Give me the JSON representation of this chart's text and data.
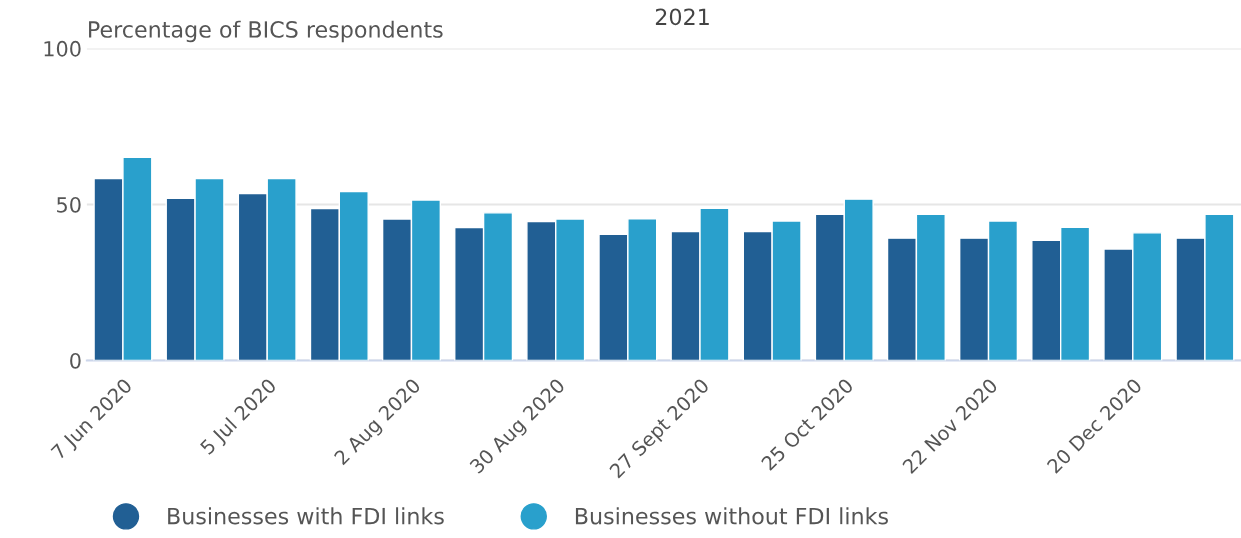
{
  "chart_data": {
    "type": "bar",
    "title": "2021",
    "ylabel": "Percentage of BICS respondents",
    "categories": [
      "7 Jun 2020",
      null,
      "5 Jul 2020",
      null,
      "2 Aug 2020",
      null,
      "30 Aug 2020",
      null,
      "27 Sept 2020",
      null,
      "25 Oct 2020",
      null,
      "22 Nov 2020",
      null,
      "20 Dec 2020",
      null
    ],
    "series": [
      {
        "name": "Businesses with FDI links",
        "color": "#215f94",
        "values": [
          58.3,
          52.0,
          53.5,
          48.7,
          45.3,
          42.6,
          44.5,
          40.4,
          41.3,
          41.3,
          46.8,
          39.2,
          39.2,
          38.5,
          35.7,
          39.2
        ]
      },
      {
        "name": "Businesses without FDI links",
        "color": "#29a0cc",
        "values": [
          65.1,
          58.3,
          58.3,
          54.1,
          51.4,
          47.3,
          45.3,
          45.4,
          48.8,
          44.7,
          51.7,
          46.8,
          44.7,
          42.7,
          40.9,
          46.8
        ]
      }
    ],
    "ylim": [
      0,
      100
    ],
    "yticks": [
      0,
      50,
      100
    ],
    "grid": "y",
    "legend": "bottom"
  }
}
